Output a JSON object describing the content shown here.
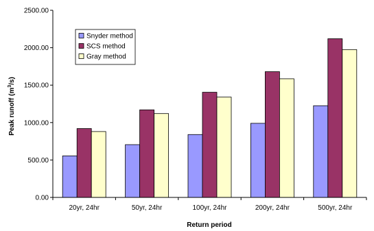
{
  "chart_data": {
    "type": "bar",
    "categories": [
      "20yr, 24hr",
      "50yr, 24hr",
      "100yr, 24hr",
      "200yr, 24hr",
      "500yr, 24hr"
    ],
    "series": [
      {
        "name": "Snyder method",
        "color": "#9999ff",
        "values": [
          555,
          705,
          840,
          990,
          1225
        ]
      },
      {
        "name": "SCS method",
        "color": "#993366",
        "values": [
          920,
          1170,
          1405,
          1680,
          2120
        ]
      },
      {
        "name": "Gray method",
        "color": "#ffffcc",
        "values": [
          880,
          1120,
          1340,
          1585,
          1975
        ]
      }
    ],
    "ylim": [
      0,
      2500
    ],
    "yticks": [
      "0.00",
      "500.00",
      "1000.00",
      "1500.00",
      "2000.00",
      "2500.00"
    ],
    "xlabel": "Return period",
    "ylabel_main": "Peak runoff (m",
    "ylabel_sup": "3",
    "ylabel_end": "/s)",
    "grid": false,
    "legend_position": "top-left"
  }
}
